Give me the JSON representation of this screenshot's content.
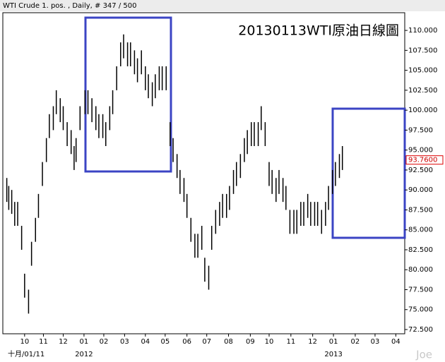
{
  "chart_data": {
    "type": "hlbar",
    "header": "WTI Crude 1. pos. , Daily, # 347 / 500",
    "title": "20130113WTI原油日線圖",
    "watermark": "Joe",
    "color": "#000000",
    "xlim": [
      0,
      406
    ],
    "ylim": [
      71.97,
      112.22
    ],
    "xticks": [
      {
        "value": 22,
        "label": "10"
      },
      {
        "value": 41,
        "label": "11"
      },
      {
        "value": 61,
        "label": "12"
      },
      {
        "value": 82,
        "label": "01"
      },
      {
        "value": 102,
        "label": "02"
      },
      {
        "value": 123,
        "label": "03"
      },
      {
        "value": 144,
        "label": "04"
      },
      {
        "value": 164,
        "label": "05"
      },
      {
        "value": 186,
        "label": "06"
      },
      {
        "value": 206,
        "label": "07"
      },
      {
        "value": 228,
        "label": "08"
      },
      {
        "value": 250,
        "label": "09"
      },
      {
        "value": 269,
        "label": "10"
      },
      {
        "value": 291,
        "label": "11"
      },
      {
        "value": 313,
        "label": "12"
      },
      {
        "value": 334,
        "label": "01"
      },
      {
        "value": 356,
        "label": "02"
      },
      {
        "value": 376,
        "label": "03"
      },
      {
        "value": 397,
        "label": "04"
      }
    ],
    "xlabels2": [
      {
        "value": 5,
        "label": "十月/01/11"
      },
      {
        "value": 82,
        "label": "2012"
      },
      {
        "value": 334,
        "label": "2013"
      }
    ],
    "yticks": [
      {
        "value": 72.5,
        "label": "72.500"
      },
      {
        "value": 75,
        "label": "75.000"
      },
      {
        "value": 77.5,
        "label": "77.500"
      },
      {
        "value": 80,
        "label": "80.000"
      },
      {
        "value": 82.5,
        "label": "82.500"
      },
      {
        "value": 85,
        "label": "85.000"
      },
      {
        "value": 87.5,
        "label": "87.500"
      },
      {
        "value": 90,
        "label": "90.000"
      },
      {
        "value": 92.5,
        "label": "92.500"
      },
      {
        "value": 95,
        "label": "95.000"
      },
      {
        "value": 97.5,
        "label": "97.500"
      },
      {
        "value": 100,
        "label": "100.000"
      },
      {
        "value": 102.5,
        "label": "102.500"
      },
      {
        "value": 105,
        "label": "105.000"
      },
      {
        "value": 107.5,
        "label": "107.500"
      },
      {
        "value": 110,
        "label": "110.000"
      }
    ],
    "last_price": {
      "value": 93.76,
      "label": "93.7600"
    },
    "x": [
      4,
      6,
      9,
      12,
      15,
      19,
      22,
      26,
      29,
      33,
      36,
      40,
      44,
      47,
      51,
      54,
      58,
      61,
      65,
      69,
      72,
      74,
      78,
      83,
      86,
      90,
      94,
      97,
      101,
      104,
      108,
      111,
      115,
      119,
      122,
      126,
      129,
      133,
      136,
      140,
      144,
      147,
      151,
      154,
      158,
      161,
      165,
      169,
      172,
      176,
      179,
      183,
      186,
      190,
      194,
      197,
      201,
      204,
      208,
      211,
      215,
      219,
      222,
      226,
      229,
      233,
      236,
      240,
      244,
      247,
      251,
      254,
      258,
      261,
      265,
      269,
      272,
      276,
      279,
      283,
      286,
      290,
      294,
      297,
      301,
      304,
      308,
      311,
      315,
      318,
      322,
      326,
      329,
      333,
      336,
      340,
      343
    ],
    "high": [
      91.5,
      90.5,
      90,
      88.5,
      88.5,
      85.5,
      79.5,
      77.5,
      83.5,
      86.5,
      89.5,
      93.5,
      96.5,
      99.5,
      100.5,
      102.5,
      101.5,
      100.5,
      98.5,
      97.5,
      95.5,
      96.5,
      100.5,
      102.5,
      102.5,
      101.5,
      100.5,
      99.5,
      99.5,
      98.5,
      100.5,
      102.5,
      105.5,
      108.5,
      109.5,
      108.5,
      108.5,
      107.5,
      106.5,
      107.5,
      105.5,
      104.5,
      103.5,
      104.5,
      105.5,
      105.5,
      105.5,
      98.5,
      96.5,
      94.5,
      92.5,
      91.5,
      89.5,
      86.5,
      84.5,
      84.5,
      85.5,
      81.5,
      80.5,
      85.5,
      87.5,
      88.5,
      89.5,
      89.5,
      90.5,
      92.5,
      93.5,
      94.5,
      96.5,
      97.5,
      98.5,
      98.5,
      98.5,
      100.5,
      98.5,
      93.5,
      92.5,
      91.5,
      92.5,
      91.5,
      90.5,
      87.5,
      87.5,
      87.5,
      88.5,
      88.5,
      89.5,
      88.5,
      88.5,
      88.5,
      87.5,
      88.5,
      90.5,
      92.5,
      93.5,
      94.5,
      95.5
    ],
    "low": [
      88.5,
      87.5,
      87,
      85.5,
      85.5,
      82.5,
      76.5,
      74.5,
      80.5,
      83.5,
      86.5,
      90.5,
      93.5,
      96.5,
      97.5,
      99.5,
      98.5,
      97.5,
      95.5,
      94.5,
      92.5,
      93.5,
      97.5,
      99.5,
      99.5,
      98.5,
      97.5,
      96.5,
      96.5,
      95.5,
      97.5,
      99.5,
      102.5,
      105.5,
      106.5,
      105.5,
      105.5,
      104.5,
      103.5,
      104.5,
      102.5,
      101.5,
      100.5,
      101.5,
      102.5,
      102.5,
      102.5,
      95.5,
      93.5,
      91.5,
      89.5,
      88.5,
      86.5,
      83.5,
      81.5,
      81.5,
      82.5,
      78.5,
      77.5,
      82.5,
      84.5,
      85.5,
      86.5,
      86.5,
      87.5,
      89.5,
      90.5,
      91.5,
      93.5,
      94.5,
      95.5,
      95.5,
      95.5,
      97.5,
      95.5,
      90.5,
      89.5,
      88.5,
      89.5,
      88.5,
      87.5,
      84.5,
      84.5,
      84.5,
      85.5,
      85.5,
      86.5,
      85.5,
      85.5,
      85.5,
      84.5,
      85.5,
      87.5,
      89.5,
      90.5,
      91.5,
      92.5
    ]
  }
}
